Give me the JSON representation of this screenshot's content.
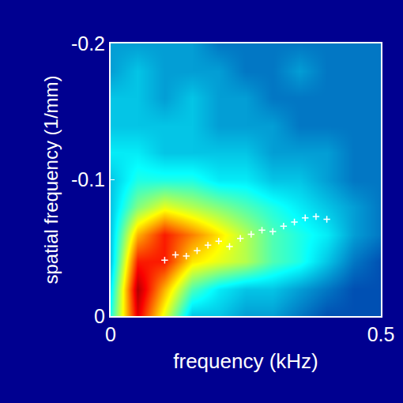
{
  "chart_data": {
    "type": "heatmap",
    "x_label": "frequency (kHz)",
    "y_label": "spatial frequency (1/mm)",
    "x": [
      0,
      0.05,
      0.1,
      0.15,
      0.2,
      0.25,
      0.3,
      0.35,
      0.4,
      0.45,
      0.5
    ],
    "y": [
      0,
      -0.02,
      -0.04,
      -0.06,
      -0.08,
      -0.1,
      -0.12,
      -0.14,
      -0.16,
      -0.18,
      -0.2
    ],
    "z": [
      [
        0.4,
        0.9,
        0.6,
        0.3,
        0.3,
        0.25,
        0.25,
        0.2,
        0.15,
        0.15,
        0.15
      ],
      [
        0.35,
        0.95,
        0.7,
        0.45,
        0.35,
        0.3,
        0.3,
        0.25,
        0.2,
        0.15,
        0.15
      ],
      [
        0.3,
        0.85,
        0.85,
        0.65,
        0.6,
        0.55,
        0.45,
        0.4,
        0.3,
        0.2,
        0.15
      ],
      [
        0.3,
        0.7,
        0.85,
        0.75,
        0.65,
        0.55,
        0.45,
        0.4,
        0.35,
        0.25,
        0.2
      ],
      [
        0.3,
        0.5,
        0.6,
        0.55,
        0.5,
        0.45,
        0.4,
        0.35,
        0.3,
        0.25,
        0.2
      ],
      [
        0.3,
        0.4,
        0.4,
        0.4,
        0.35,
        0.35,
        0.3,
        0.3,
        0.25,
        0.2,
        0.2
      ],
      [
        0.35,
        0.35,
        0.3,
        0.3,
        0.3,
        0.3,
        0.25,
        0.25,
        0.25,
        0.2,
        0.2
      ],
      [
        0.3,
        0.3,
        0.3,
        0.3,
        0.25,
        0.25,
        0.25,
        0.2,
        0.2,
        0.2,
        0.2
      ],
      [
        0.3,
        0.3,
        0.25,
        0.3,
        0.25,
        0.25,
        0.2,
        0.2,
        0.2,
        0.2,
        0.2
      ],
      [
        0.25,
        0.3,
        0.25,
        0.25,
        0.25,
        0.2,
        0.2,
        0.25,
        0.2,
        0.2,
        0.2
      ],
      [
        0.25,
        0.25,
        0.25,
        0.25,
        0.2,
        0.2,
        0.2,
        0.2,
        0.2,
        0.2,
        0.2
      ]
    ],
    "zlim": [
      0,
      1
    ],
    "series": [
      {
        "type": "scatter",
        "color": "#ffffff",
        "marker": "cross",
        "x": [
          0.1,
          0.12,
          0.14,
          0.16,
          0.18,
          0.2,
          0.22,
          0.24,
          0.26,
          0.28,
          0.3,
          0.32,
          0.34,
          0.36,
          0.38,
          0.4
        ],
        "values": [
          -0.041,
          -0.045,
          -0.044,
          -0.048,
          -0.052,
          -0.055,
          -0.051,
          -0.057,
          -0.06,
          -0.063,
          -0.062,
          -0.066,
          -0.069,
          -0.072,
          -0.073,
          -0.071
        ]
      }
    ],
    "xlim": [
      0,
      0.5
    ],
    "xticks": [
      0,
      0.5
    ],
    "ylim": [
      0,
      -0.2
    ],
    "yticks": [
      -0.2,
      -0.1,
      0
    ],
    "grid": false
  }
}
